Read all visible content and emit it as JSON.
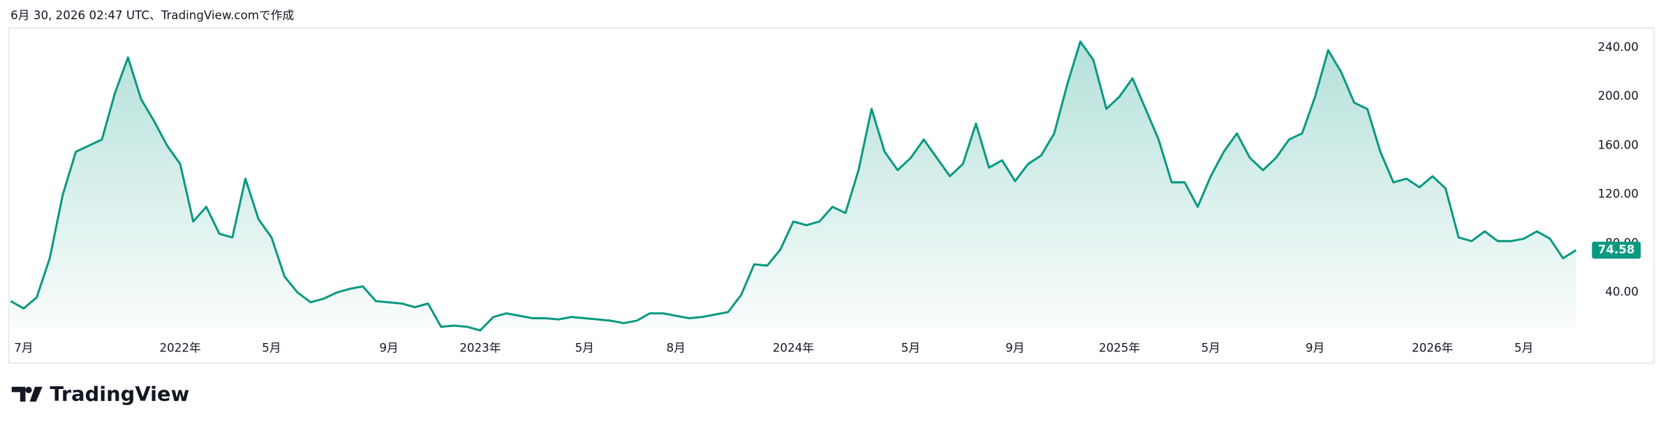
{
  "chart_data": {
    "type": "area",
    "caption": "6月 30, 2026 02:47 UTC、TradingView.comで作成",
    "categories": [
      null,
      "7月",
      null,
      null,
      null,
      null,
      null,
      null,
      null,
      null,
      null,
      null,
      null,
      "2022年",
      null,
      null,
      null,
      null,
      null,
      null,
      "5月",
      null,
      null,
      null,
      null,
      null,
      null,
      null,
      null,
      "9月",
      null,
      null,
      null,
      null,
      null,
      null,
      "2023年",
      null,
      null,
      null,
      null,
      null,
      null,
      null,
      "5月",
      null,
      null,
      null,
      null,
      null,
      null,
      "8月",
      null,
      null,
      null,
      null,
      null,
      null,
      null,
      null,
      "2024年",
      null,
      null,
      null,
      null,
      null,
      null,
      null,
      null,
      "5月",
      null,
      null,
      null,
      null,
      null,
      null,
      null,
      "9月",
      null,
      null,
      null,
      null,
      null,
      null,
      null,
      "2025年",
      null,
      null,
      null,
      null,
      null,
      null,
      "5月",
      null,
      null,
      null,
      null,
      null,
      null,
      null,
      "9月",
      null,
      null,
      null,
      null,
      null,
      null,
      null,
      null,
      "2026年",
      null,
      null,
      null,
      null,
      null,
      null,
      "5月",
      null,
      null,
      null,
      null
    ],
    "series": [
      {
        "color": "#089981",
        "values": [
          33,
          27,
          36,
          68,
          120,
          155,
          160,
          165,
          203,
          232,
          198,
          180,
          160,
          145,
          98,
          110,
          88,
          85,
          133,
          100,
          85,
          53,
          40,
          32,
          35,
          40,
          43,
          45,
          33,
          32,
          31,
          28,
          31,
          12,
          13,
          12,
          9,
          20,
          23,
          21,
          19,
          19,
          18,
          20,
          19,
          18,
          17,
          15,
          17,
          23,
          23,
          21,
          19,
          20,
          22,
          24,
          38,
          63,
          62,
          75,
          98,
          95,
          98,
          110,
          105,
          140,
          190,
          155,
          140,
          150,
          165,
          150,
          135,
          145,
          178,
          142,
          148,
          131,
          145,
          152,
          170,
          210,
          245,
          230,
          190,
          200,
          215,
          190,
          165,
          130,
          130,
          110,
          135,
          155,
          170,
          150,
          140,
          150,
          165,
          170,
          200,
          238,
          220,
          195,
          190,
          155,
          130,
          133,
          126,
          135,
          125,
          85,
          82,
          90,
          82,
          82,
          84,
          90,
          84,
          68,
          74.58
        ]
      }
    ],
    "ylim": [
      10.6,
      255.6
    ],
    "yticks": [
      {
        "value": 40,
        "label": "40.00"
      },
      {
        "value": 80,
        "label": "80.00"
      },
      {
        "value": 120,
        "label": "120.00"
      },
      {
        "value": 160,
        "label": "160.00"
      },
      {
        "value": 200,
        "label": "200.00"
      },
      {
        "value": 240,
        "label": "240.00"
      }
    ],
    "grid": false
  },
  "brand": "TradingView"
}
